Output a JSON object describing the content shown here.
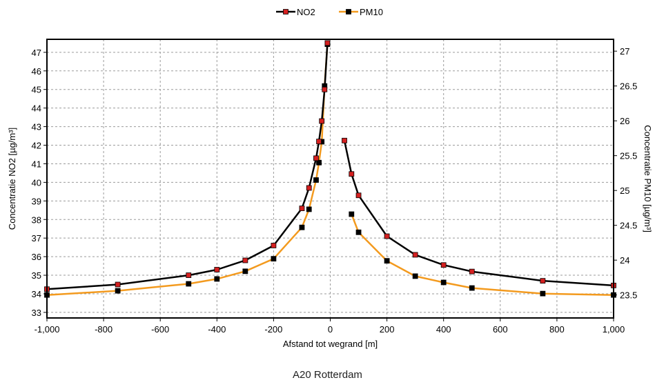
{
  "caption": "A20 Rotterdam",
  "chart_data": {
    "type": "line",
    "xlabel": "Afstand tot wegrand [m]",
    "ylabel_left": "Concentratie NO2 [µg/m³]",
    "ylabel_right": "Concentratie PM10 [µg/m³]",
    "xlim": [
      -1000,
      1000
    ],
    "ylim_left": [
      32.7,
      47.7
    ],
    "ylim_right": [
      23.17,
      27.17
    ],
    "x_ticks": [
      -1000,
      -800,
      -600,
      -400,
      -200,
      0,
      200,
      400,
      600,
      800,
      1000
    ],
    "x_tick_labels": [
      "-1,000",
      "-800",
      "-600",
      "-400",
      "-200",
      "0",
      "200",
      "400",
      "600",
      "800",
      "1,000"
    ],
    "y_left_ticks": [
      33,
      34,
      35,
      36,
      37,
      38,
      39,
      40,
      41,
      42,
      43,
      44,
      45,
      46,
      47
    ],
    "y_right_ticks": [
      23.5,
      24,
      24.5,
      25,
      25.5,
      26,
      26.5,
      27
    ],
    "y_right_tick_labels": [
      "23.5",
      "24",
      "24.5",
      "25",
      "25.5",
      "26",
      "26.5",
      "27"
    ],
    "grid": true,
    "legend_position": "top-center",
    "series": [
      {
        "name": "NO2",
        "axis": "left",
        "line_color": "#000000",
        "marker_color": "#d42020",
        "segments": [
          {
            "x": [
              -1000,
              -750,
              -500,
              -400,
              -300,
              -200,
              -100,
              -75,
              -50,
              -40,
              -30,
              -20,
              -10
            ],
            "y": [
              34.25,
              34.5,
              35.0,
              35.3,
              35.8,
              36.6,
              38.6,
              39.7,
              41.3,
              42.2,
              43.3,
              45.0,
              47.5
            ]
          },
          {
            "x": [
              50,
              75,
              100,
              200,
              300,
              400,
              500,
              750,
              1000
            ],
            "y": [
              42.25,
              40.45,
              39.3,
              37.1,
              36.1,
              35.55,
              35.2,
              34.7,
              34.45
            ]
          }
        ]
      },
      {
        "name": "PM10",
        "axis": "right",
        "line_color": "#f39a1e",
        "marker_color": "#000000",
        "segments": [
          {
            "x": [
              -1000,
              -750,
              -500,
              -400,
              -300,
              -200,
              -100,
              -75,
              -50,
              -40,
              -30,
              -20,
              -10
            ],
            "y": [
              23.5,
              23.56,
              23.66,
              23.73,
              23.84,
              24.02,
              24.47,
              24.73,
              25.15,
              25.4,
              25.7,
              26.5,
              27.1
            ]
          },
          {
            "x": [
              75,
              100,
              200,
              300,
              400,
              500,
              750,
              1000
            ],
            "y": [
              24.66,
              24.4,
              23.99,
              23.77,
              23.68,
              23.6,
              23.52,
              23.5
            ]
          }
        ]
      }
    ]
  }
}
